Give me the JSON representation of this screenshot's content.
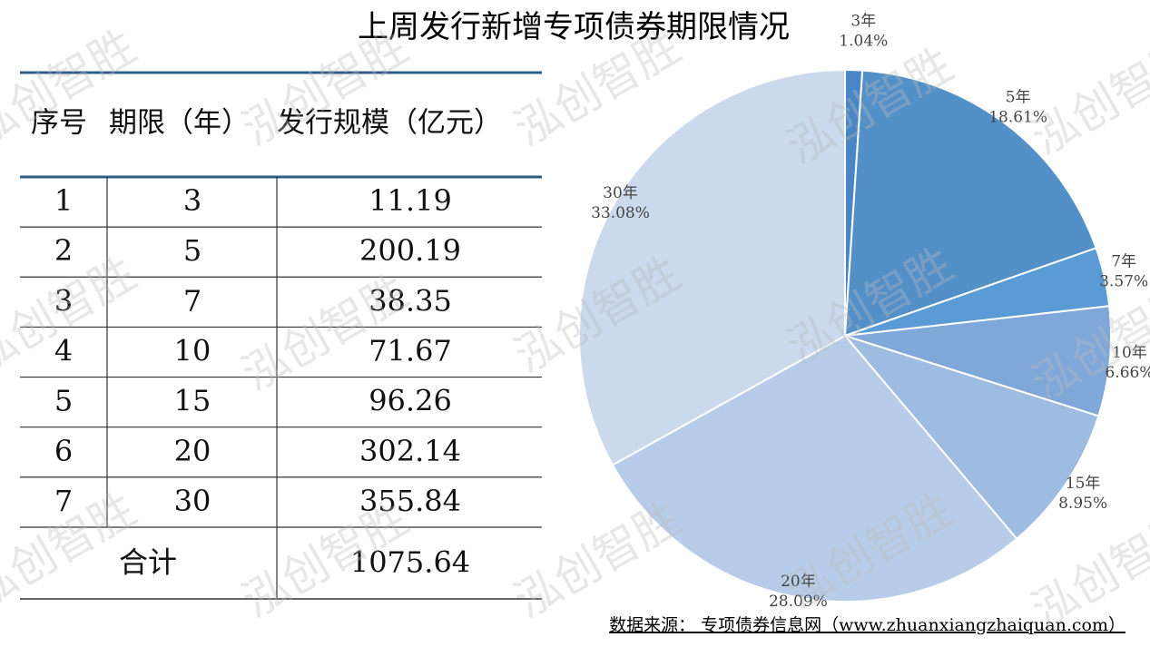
{
  "title": "上周发行新增专项债券期限情况",
  "watermark": "泓创智胜",
  "table": {
    "header": [
      "序号",
      "期限（年）",
      "发行规模（亿元）"
    ],
    "rows": [
      [
        "1",
        "3",
        "11.19"
      ],
      [
        "2",
        "5",
        "200.19"
      ],
      [
        "3",
        "7",
        "38.35"
      ],
      [
        "4",
        "10",
        "71.67"
      ],
      [
        "5",
        "15",
        "96.26"
      ],
      [
        "6",
        "20",
        "302.14"
      ],
      [
        "7",
        "30",
        "355.84"
      ]
    ],
    "total": [
      "合计",
      "1075.64"
    ]
  },
  "chart_data": {
    "type": "pie",
    "categories": [
      "3年",
      "5年",
      "7年",
      "10年",
      "15年",
      "20年",
      "30年"
    ],
    "values": [
      1.04,
      18.61,
      3.57,
      6.66,
      8.95,
      28.09,
      33.08
    ],
    "value_labels": [
      "1.04%",
      "18.61%",
      "3.57%",
      "6.66%",
      "8.95%",
      "28.09%",
      "33.08%"
    ],
    "colors": [
      "#4a86c6",
      "#5490c8",
      "#5b9bd5",
      "#7fa8d9",
      "#9ebce2",
      "#b7cce9",
      "#cad9ec"
    ]
  },
  "source": "数据来源： 专项债券信息网（www.zhuanxiangzhaiquan.com）"
}
